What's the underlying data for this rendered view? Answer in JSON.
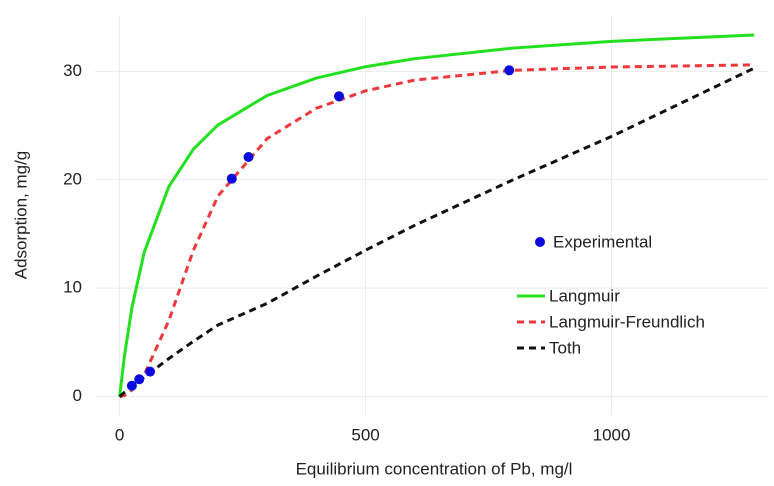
{
  "chart_data": {
    "type": "line",
    "x_label": "Equilibrium concentration of Pb, mg/l",
    "y_label": "Adsorption, mg/g",
    "xlim": [
      -50,
      1320
    ],
    "ylim": [
      -1.7,
      35.2
    ],
    "xticks": [
      0,
      500,
      1000
    ],
    "yticks": [
      0,
      10,
      20,
      30
    ],
    "grid": true,
    "series": [
      {
        "name": "Experimental",
        "type": "scatter",
        "color": "#0a0adc",
        "x": [
          25,
          40,
          62,
          228,
          262,
          446,
          792
        ],
        "values": [
          1.0,
          1.6,
          2.3,
          20.1,
          22.1,
          27.7,
          30.1
        ]
      },
      {
        "name": "Langmuir",
        "type": "line",
        "color": "#22e01e",
        "style": "solid",
        "x": [
          0,
          10,
          25,
          50,
          100,
          150,
          200,
          300,
          400,
          500,
          600,
          800,
          1000,
          1290
        ],
        "values": [
          0,
          3.8,
          8.19,
          13.31,
          19.36,
          22.82,
          25.06,
          27.78,
          29.38,
          30.43,
          31.17,
          32.15,
          32.77,
          33.35
        ]
      },
      {
        "name": "Langmuir-Freundlich",
        "type": "line",
        "color": "#f0373c",
        "style": "dashed",
        "x": [
          0,
          10,
          25,
          50,
          100,
          150,
          200,
          300,
          400,
          500,
          600,
          800,
          1000,
          1290
        ],
        "values": [
          0,
          0.1,
          0.6,
          2.0,
          7.0,
          13.5,
          18.5,
          23.8,
          26.6,
          28.2,
          29.2,
          30.1,
          30.4,
          30.6
        ]
      },
      {
        "name": "Toth",
        "type": "line",
        "color": "#111111",
        "style": "dashed",
        "x": [
          0,
          10,
          25,
          50,
          100,
          150,
          200,
          300,
          400,
          500,
          600,
          800,
          1000,
          1290
        ],
        "values": [
          0,
          0.4,
          0.9,
          1.8,
          3.5,
          5.1,
          6.6,
          8.6,
          11.1,
          13.5,
          15.8,
          20.0,
          24.0,
          30.3
        ]
      }
    ]
  }
}
